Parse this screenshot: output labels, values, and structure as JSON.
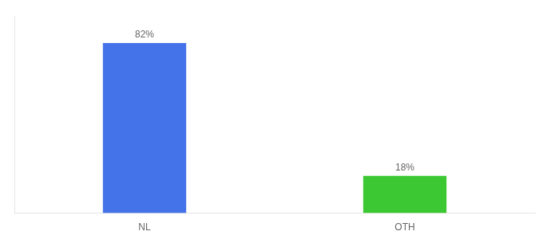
{
  "chart_data": {
    "type": "bar",
    "categories": [
      "NL",
      "OTH"
    ],
    "values": [
      82,
      18
    ],
    "colors": [
      "#4472e8",
      "#3cc832"
    ],
    "value_labels": [
      "82%",
      "18%"
    ],
    "data_labels": true,
    "ylim": [
      0,
      95
    ],
    "yticks": [],
    "tick_labels": "x",
    "grid": false
  }
}
